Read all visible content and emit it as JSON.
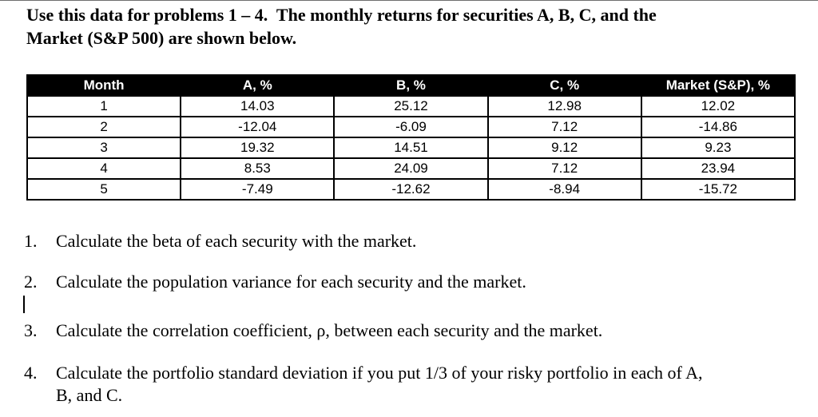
{
  "colors": {
    "page_bg": "#ffffff",
    "text": "#000000",
    "table_header_bg": "#000000",
    "table_header_text": "#ffffff",
    "table_border": "#000000"
  },
  "intro": {
    "lines": [
      "Use this data for problems 1 – 4.  The monthly returns for securities A, B, C, and the",
      "Market (S&P 500) are shown below."
    ]
  },
  "table": {
    "headers": [
      "Month",
      "A, %",
      "B, %",
      "C, %",
      "Market (S&P), %"
    ],
    "rows": [
      [
        "1",
        "14.03",
        "25.12",
        "12.98",
        "12.02"
      ],
      [
        "2",
        "-12.04",
        "-6.09",
        "7.12",
        "-14.86"
      ],
      [
        "3",
        "19.32",
        "14.51",
        "9.12",
        "9.23"
      ],
      [
        "4",
        "8.53",
        "24.09",
        "7.12",
        "23.94"
      ],
      [
        "5",
        "-7.49",
        "-12.62",
        "-8.94",
        "-15.72"
      ]
    ]
  },
  "problems": [
    {
      "number": "1.",
      "lines": [
        "Calculate the beta of each security with the market."
      ]
    },
    {
      "number": "2.",
      "lines": [
        "Calculate the population variance for each security and the market."
      ]
    },
    {
      "number": "3.",
      "lines": [
        "Calculate the correlation coefficient, ρ, between each security and the market."
      ]
    },
    {
      "number": "4.",
      "lines": [
        "Calculate the portfolio standard deviation if you put 1/3 of your risky portfolio in each of A,",
        "B, and C."
      ]
    }
  ]
}
